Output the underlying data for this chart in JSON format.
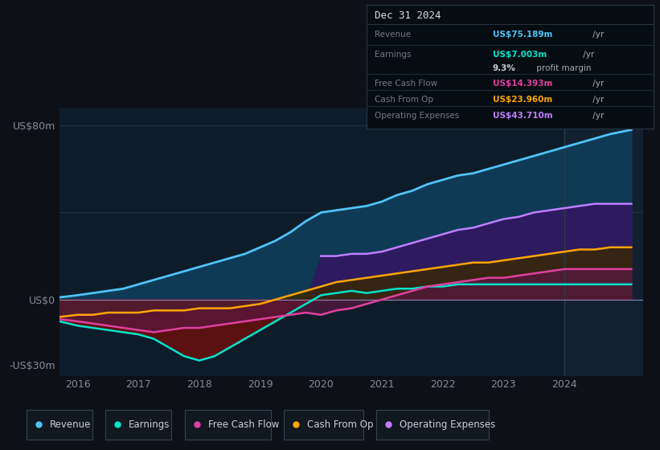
{
  "bg_color": "#0d1117",
  "plot_bg_color": "#0e1c2a",
  "ylim": [
    -35,
    88
  ],
  "yticks": [
    -30,
    0,
    80
  ],
  "ytick_labels": [
    "-US$30m",
    "US$0",
    "US$80m"
  ],
  "xticks": [
    2016,
    2017,
    2018,
    2019,
    2020,
    2021,
    2022,
    2023,
    2024
  ],
  "xlim": [
    2015.7,
    2025.3
  ],
  "title": "Dec 31 2024",
  "info_rows": [
    {
      "label": "Revenue",
      "value": "US$75.189m",
      "suffix": " /yr",
      "color": "#4fc3f7"
    },
    {
      "label": "Earnings",
      "value": "US$7.003m",
      "suffix": " /yr",
      "color": "#00e5cc"
    },
    {
      "label": "",
      "value": "9.3%",
      "suffix": " profit margin",
      "color": "#dddddd"
    },
    {
      "label": "Free Cash Flow",
      "value": "US$14.393m",
      "suffix": " /yr",
      "color": "#e040a0"
    },
    {
      "label": "Cash From Op",
      "value": "US$23.960m",
      "suffix": " /yr",
      "color": "#ffa500"
    },
    {
      "label": "Operating Expenses",
      "value": "US$43.710m",
      "suffix": " /yr",
      "color": "#bf7fff"
    }
  ],
  "series": {
    "years": [
      2015.7,
      2016.0,
      2016.25,
      2016.5,
      2016.75,
      2017.0,
      2017.25,
      2017.5,
      2017.75,
      2018.0,
      2018.25,
      2018.5,
      2018.75,
      2019.0,
      2019.25,
      2019.5,
      2019.75,
      2020.0,
      2020.25,
      2020.5,
      2020.75,
      2021.0,
      2021.25,
      2021.5,
      2021.75,
      2022.0,
      2022.25,
      2022.5,
      2022.75,
      2023.0,
      2023.25,
      2023.5,
      2023.75,
      2024.0,
      2024.25,
      2024.5,
      2024.75,
      2025.1
    ],
    "revenue": [
      1,
      2,
      3,
      4,
      5,
      7,
      9,
      11,
      13,
      15,
      17,
      19,
      21,
      24,
      27,
      31,
      36,
      40,
      41,
      42,
      43,
      45,
      48,
      50,
      53,
      55,
      57,
      58,
      60,
      62,
      64,
      66,
      68,
      70,
      72,
      74,
      76,
      78
    ],
    "earnings": [
      -10,
      -12,
      -13,
      -14,
      -15,
      -16,
      -18,
      -22,
      -26,
      -28,
      -26,
      -22,
      -18,
      -14,
      -10,
      -6,
      -2,
      2,
      3,
      4,
      3,
      4,
      5,
      5,
      6,
      6,
      7,
      7,
      7,
      7,
      7,
      7,
      7,
      7,
      7,
      7,
      7,
      7
    ],
    "free_cash_flow": [
      -9,
      -10,
      -11,
      -12,
      -13,
      -14,
      -15,
      -14,
      -13,
      -13,
      -12,
      -11,
      -10,
      -9,
      -8,
      -7,
      -6,
      -7,
      -5,
      -4,
      -2,
      0,
      2,
      4,
      6,
      7,
      8,
      9,
      10,
      10,
      11,
      12,
      13,
      14,
      14,
      14,
      14,
      14
    ],
    "cash_from_op": [
      -8,
      -7,
      -7,
      -6,
      -6,
      -6,
      -5,
      -5,
      -5,
      -4,
      -4,
      -4,
      -3,
      -2,
      0,
      2,
      4,
      6,
      8,
      9,
      10,
      11,
      12,
      13,
      14,
      15,
      16,
      17,
      17,
      18,
      19,
      20,
      21,
      22,
      23,
      23,
      24,
      24
    ],
    "operating_expenses": [
      0,
      0,
      0,
      0,
      0,
      0,
      0,
      0,
      0,
      0,
      0,
      0,
      0,
      0,
      0,
      0,
      0,
      20,
      20,
      21,
      21,
      22,
      24,
      26,
      28,
      30,
      32,
      33,
      35,
      37,
      38,
      40,
      41,
      42,
      43,
      44,
      44,
      44
    ]
  },
  "colors": {
    "revenue": "#4fc3f7",
    "earnings": "#00e5cc",
    "free_cash_flow": "#e040a0",
    "cash_from_op": "#ffa500",
    "operating_expenses": "#bf7fff"
  },
  "vertical_line_x": 2024.0,
  "legend_items": [
    {
      "label": "Revenue",
      "color": "#4fc3f7"
    },
    {
      "label": "Earnings",
      "color": "#00e5cc"
    },
    {
      "label": "Free Cash Flow",
      "color": "#e040a0"
    },
    {
      "label": "Cash From Op",
      "color": "#ffa500"
    },
    {
      "label": "Operating Expenses",
      "color": "#bf7fff"
    }
  ]
}
